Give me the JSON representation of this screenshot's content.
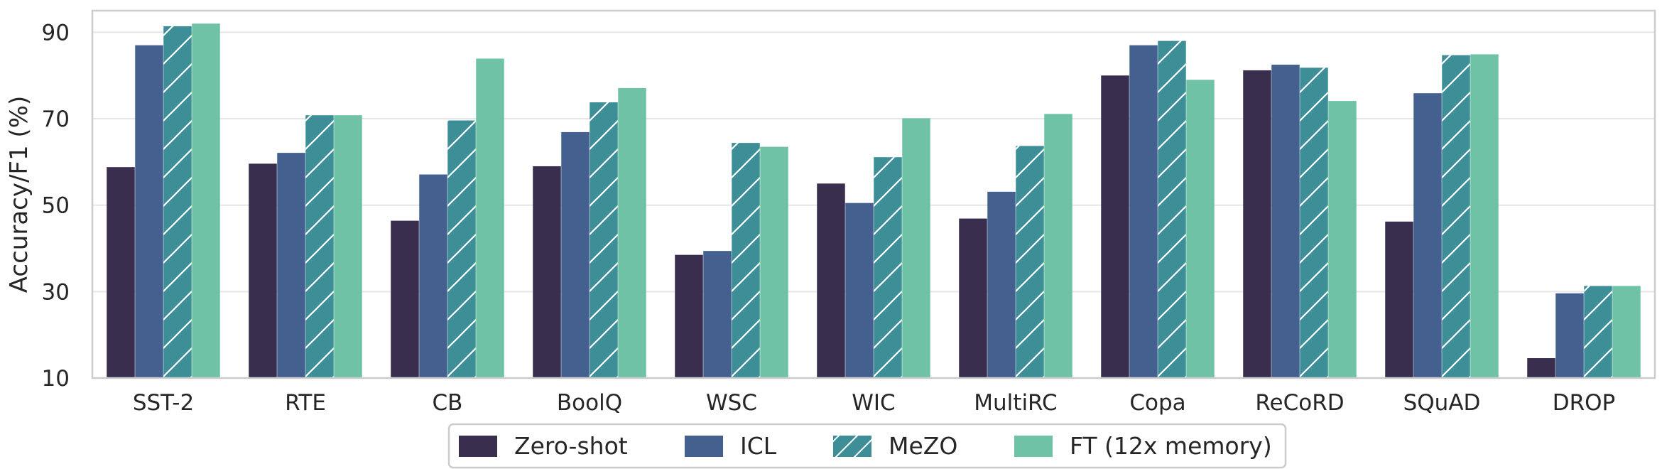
{
  "chart_data": {
    "type": "bar",
    "ylabel": "Accuracy/F1 (%)",
    "ylim": [
      10,
      95
    ],
    "yticks": [
      10,
      30,
      50,
      70,
      90
    ],
    "grid": "y",
    "legend_position": "bottom-center",
    "categories": [
      "SST-2",
      "RTE",
      "CB",
      "BoolQ",
      "WSC",
      "WIC",
      "MultiRC",
      "Copa",
      "ReCoRD",
      "SQuAD",
      "DROP"
    ],
    "series": [
      {
        "name": "Zero-shot",
        "color": "#3a2e4e",
        "hatch": false,
        "values": [
          58.8,
          59.6,
          46.4,
          59.0,
          38.5,
          55.0,
          46.9,
          80.0,
          81.2,
          46.2,
          14.6
        ]
      },
      {
        "name": "ICL",
        "color": "#43608e",
        "hatch": false,
        "values": [
          87.0,
          62.1,
          57.1,
          66.9,
          39.4,
          50.5,
          53.1,
          87.0,
          82.5,
          75.9,
          29.6
        ]
      },
      {
        "name": "MeZO",
        "color": "#3e8e98",
        "hatch": true,
        "values": [
          91.4,
          70.8,
          69.6,
          73.8,
          64.4,
          61.1,
          63.7,
          88.0,
          81.8,
          84.7,
          31.3
        ]
      },
      {
        "name": "FT (12x memory)",
        "color": "#6fc2a6",
        "hatch": false,
        "values": [
          92.0,
          70.8,
          83.9,
          77.1,
          63.5,
          70.1,
          71.1,
          79.0,
          74.1,
          84.9,
          31.3
        ]
      }
    ]
  }
}
